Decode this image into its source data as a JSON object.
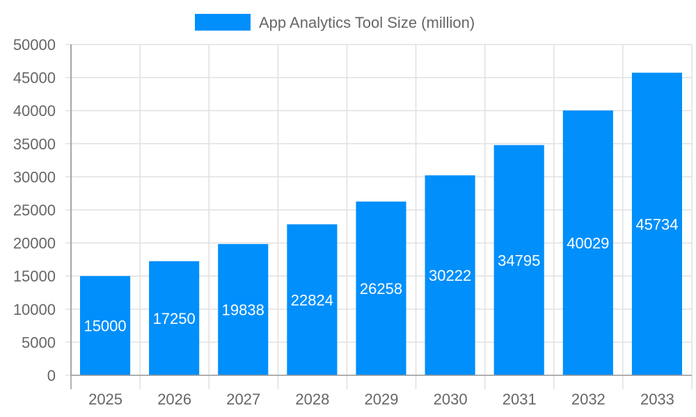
{
  "chart_data": {
    "type": "bar",
    "title": "",
    "xlabel": "",
    "ylabel": "",
    "categories": [
      "2025",
      "2026",
      "2027",
      "2028",
      "2029",
      "2030",
      "2031",
      "2032",
      "2033"
    ],
    "series": [
      {
        "name": "App Analytics Tool Size (million)",
        "values": [
          15000,
          17250,
          19838,
          22824,
          26258,
          30222,
          34795,
          40029,
          45734
        ],
        "color": "#008ffb"
      }
    ],
    "ylim": [
      0,
      50000
    ],
    "yticks": [
      0,
      5000,
      10000,
      15000,
      20000,
      25000,
      30000,
      35000,
      40000,
      45000,
      50000
    ],
    "grid": true,
    "legend": "top-center",
    "data_labels": true
  }
}
